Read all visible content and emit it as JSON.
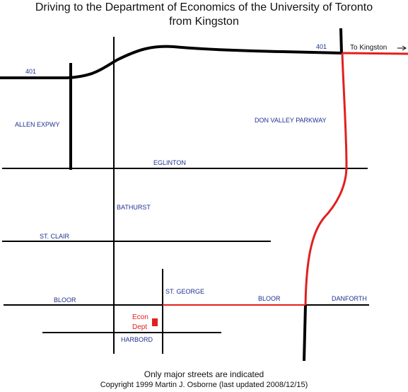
{
  "title": {
    "line1": "Driving to the Department of Economics of the University of Toronto",
    "line2": "from Kingston"
  },
  "colors": {
    "road": "#000000",
    "route": "#e21f1f",
    "street_label": "#1f2f8f",
    "destination": "#e21f1f"
  },
  "labels": {
    "hwy401_west": "401",
    "hwy401_east": "401",
    "to_kingston": "To Kingston",
    "allen_expwy": "ALLEN EXPWY",
    "don_valley_parkway": "DON VALLEY PARKWAY",
    "eglinton": "EGLINTON",
    "bathurst": "BATHURST",
    "st_clair": "ST. CLAIR",
    "st_george": "ST. GEORGE",
    "bloor_west": "BLOOR",
    "bloor_east": "BLOOR",
    "danforth": "DANFORTH",
    "harbord": "HARBORD",
    "econ_dept_line1": "Econ",
    "econ_dept_line2": "Dept"
  },
  "footer": {
    "note": "Only major streets are indicated",
    "copyright": "Copyright 1999 Martin J. Osborne (last updated 2008/12/15)"
  }
}
